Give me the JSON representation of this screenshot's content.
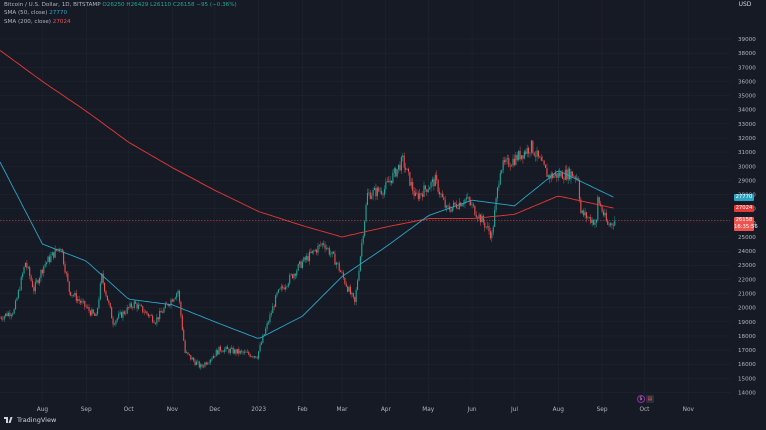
{
  "legend": {
    "title": "Bitcoin / U.S. Dollar, 1D, BITSTAMP",
    "ohlc": "O26250  H26429  L26110  C26158  −95 (−0.36%)",
    "sma50_label": "SMA (50, close)",
    "sma50_value": "27770",
    "sma200_label": "SMA (200, close)",
    "sma200_value": "27024"
  },
  "currency": "USD",
  "badges": {
    "sma50": "27770",
    "sma200": "27024",
    "price": "26158",
    "countdown": "16:35:56"
  },
  "branding": "TradingView",
  "events": [
    "dividend-icon",
    "calendar-icon"
  ],
  "colors": {
    "background": "#161a25",
    "up": "#26a69a",
    "down": "#ef5350",
    "sma50": "#2ba5c5",
    "sma200": "#e53935",
    "grid": "#222633",
    "text": "#b2b5be"
  },
  "chart_data": {
    "type": "candlestick",
    "title": "Bitcoin / U.S. Dollar, 1D, BITSTAMP",
    "xlabel": "",
    "ylabel": "USD",
    "ylim": [
      13000,
      40000
    ],
    "xlim": [
      "2022-07-02",
      "2022-11-20"
    ],
    "grid": true,
    "x_ticks": [
      "Aug",
      "Sep",
      "Oct",
      "Nov",
      "Dec",
      "2023",
      "Feb",
      "Mar",
      "Apr",
      "May",
      "Jun",
      "Jul",
      "Aug",
      "Sep",
      "Oct",
      "Nov"
    ],
    "y_ticks": [
      14000,
      15000,
      16000,
      17000,
      18000,
      19000,
      20000,
      21000,
      22000,
      23000,
      24000,
      25000,
      26000,
      27000,
      28000,
      29000,
      30000,
      31000,
      32000,
      33000,
      34000,
      35000,
      36000,
      37000,
      38000,
      39000
    ],
    "price_anchors": [
      {
        "date": "2022-07-02",
        "price": 19300
      },
      {
        "date": "2022-07-12",
        "price": 19800
      },
      {
        "date": "2022-07-20",
        "price": 23200
      },
      {
        "date": "2022-07-26",
        "price": 21300
      },
      {
        "date": "2022-08-02",
        "price": 23000
      },
      {
        "date": "2022-08-14",
        "price": 24400
      },
      {
        "date": "2022-08-20",
        "price": 21200
      },
      {
        "date": "2022-09-08",
        "price": 19300
      },
      {
        "date": "2022-09-12",
        "price": 22200
      },
      {
        "date": "2022-09-20",
        "price": 19000
      },
      {
        "date": "2022-10-05",
        "price": 20300
      },
      {
        "date": "2022-10-20",
        "price": 19100
      },
      {
        "date": "2022-11-05",
        "price": 21200
      },
      {
        "date": "2022-11-10",
        "price": 16800
      },
      {
        "date": "2022-11-21",
        "price": 15800
      },
      {
        "date": "2022-12-05",
        "price": 17100
      },
      {
        "date": "2022-12-20",
        "price": 16800
      },
      {
        "date": "2022-12-31",
        "price": 16600
      },
      {
        "date": "2023-01-14",
        "price": 20900
      },
      {
        "date": "2023-01-31",
        "price": 23100
      },
      {
        "date": "2023-02-16",
        "price": 24600
      },
      {
        "date": "2023-02-25",
        "price": 23200
      },
      {
        "date": "2023-03-10",
        "price": 20300
      },
      {
        "date": "2023-03-19",
        "price": 28000
      },
      {
        "date": "2023-03-31",
        "price": 28400
      },
      {
        "date": "2023-04-13",
        "price": 30400
      },
      {
        "date": "2023-04-22",
        "price": 27800
      },
      {
        "date": "2023-05-06",
        "price": 29000
      },
      {
        "date": "2023-05-14",
        "price": 26900
      },
      {
        "date": "2023-05-28",
        "price": 27700
      },
      {
        "date": "2023-06-10",
        "price": 25900
      },
      {
        "date": "2023-06-15",
        "price": 25100
      },
      {
        "date": "2023-06-21",
        "price": 29900
      },
      {
        "date": "2023-07-01",
        "price": 30500
      },
      {
        "date": "2023-07-13",
        "price": 31400
      },
      {
        "date": "2023-07-25",
        "price": 29300
      },
      {
        "date": "2023-08-10",
        "price": 29500
      },
      {
        "date": "2023-08-15",
        "price": 29200
      },
      {
        "date": "2023-08-17",
        "price": 26700
      },
      {
        "date": "2023-08-28",
        "price": 26000
      },
      {
        "date": "2023-08-29",
        "price": 27700
      },
      {
        "date": "2023-09-05",
        "price": 25800
      },
      {
        "date": "2023-09-10",
        "price": 26158
      }
    ],
    "sma50": [
      {
        "date": "2022-07-02",
        "value": 30300
      },
      {
        "date": "2022-08-01",
        "value": 24500
      },
      {
        "date": "2022-09-01",
        "value": 23300
      },
      {
        "date": "2022-10-01",
        "value": 20600
      },
      {
        "date": "2022-11-01",
        "value": 20200
      },
      {
        "date": "2022-12-01",
        "value": 19000
      },
      {
        "date": "2023-01-01",
        "value": 17800
      },
      {
        "date": "2023-02-01",
        "value": 19400
      },
      {
        "date": "2023-03-01",
        "value": 22200
      },
      {
        "date": "2023-04-01",
        "value": 24300
      },
      {
        "date": "2023-05-01",
        "value": 26500
      },
      {
        "date": "2023-06-01",
        "value": 27600
      },
      {
        "date": "2023-07-01",
        "value": 27200
      },
      {
        "date": "2023-08-01",
        "value": 29700
      },
      {
        "date": "2023-09-10",
        "value": 27770
      }
    ],
    "sma200": [
      {
        "date": "2022-07-02",
        "value": 38200
      },
      {
        "date": "2022-08-01",
        "value": 36000
      },
      {
        "date": "2022-09-01",
        "value": 33900
      },
      {
        "date": "2022-10-01",
        "value": 31700
      },
      {
        "date": "2022-11-01",
        "value": 29900
      },
      {
        "date": "2022-12-01",
        "value": 28300
      },
      {
        "date": "2023-01-01",
        "value": 26800
      },
      {
        "date": "2023-02-01",
        "value": 25800
      },
      {
        "date": "2023-03-01",
        "value": 25000
      },
      {
        "date": "2023-04-01",
        "value": 25700
      },
      {
        "date": "2023-05-01",
        "value": 26300
      },
      {
        "date": "2023-06-01",
        "value": 26300
      },
      {
        "date": "2023-07-01",
        "value": 26600
      },
      {
        "date": "2023-08-01",
        "value": 27900
      },
      {
        "date": "2023-09-10",
        "value": 27024
      }
    ],
    "last_price": 26158
  }
}
